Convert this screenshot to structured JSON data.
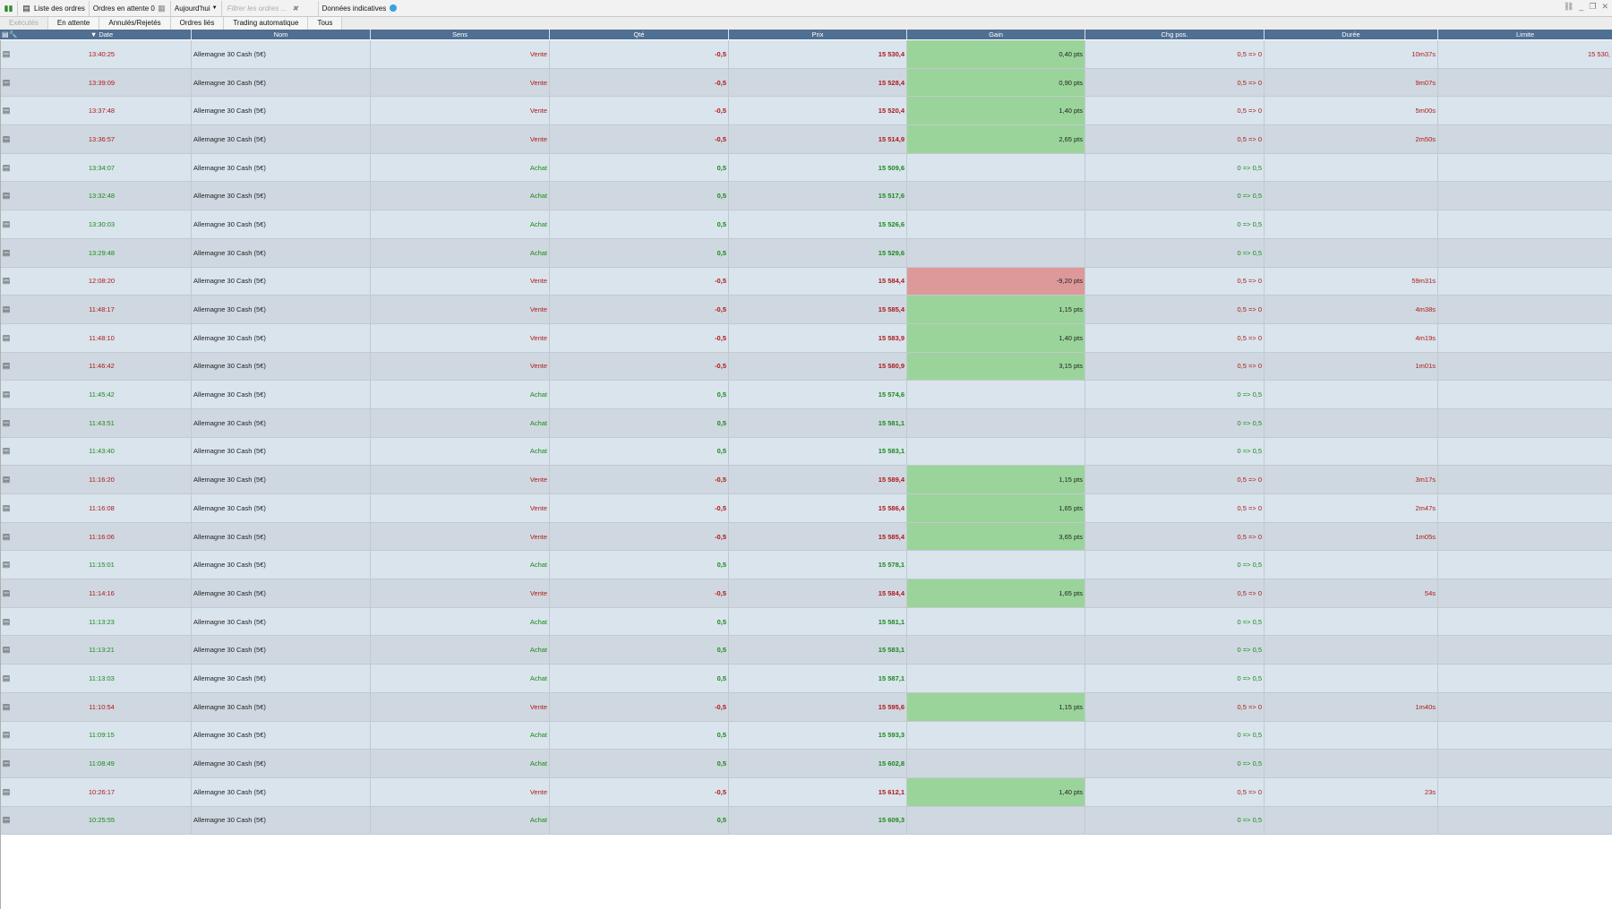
{
  "toolbar": {
    "orders_list": "Liste des ordres",
    "pending_orders": "Ordres en attente 0",
    "period": "Aujourd'hui",
    "filter_placeholder": "Filtrer les ordres ...",
    "indicative": "Données indicatives"
  },
  "tabs": [
    "Exécutés",
    "En attente",
    "Annulés/Rejetés",
    "Ordres liés",
    "Trading automatique",
    "Tous"
  ],
  "columns": {
    "date": "Date",
    "nom": "Nom",
    "sens": "Sens",
    "qte": "Qté",
    "prix": "Prix",
    "gain": "Gain",
    "chg": "Chg pos.",
    "duree": "Durée",
    "limite": "Limite"
  },
  "rows": [
    {
      "date": "13:40:25",
      "nom": "Allemagne 30 Cash (5€)",
      "sens": "Vente",
      "qte": "-0,5",
      "prix": "15 530,4",
      "gain": "0,40 pts",
      "chg": "0,5 => 0",
      "duree": "10m37s",
      "limite": "15 530,",
      "gain_state": "pos"
    },
    {
      "date": "13:39:09",
      "nom": "Allemagne 30 Cash (5€)",
      "sens": "Vente",
      "qte": "-0,5",
      "prix": "15 528,4",
      "gain": "0,90 pts",
      "chg": "0,5 => 0",
      "duree": "9m07s",
      "limite": "",
      "gain_state": "pos"
    },
    {
      "date": "13:37:48",
      "nom": "Allemagne 30 Cash (5€)",
      "sens": "Vente",
      "qte": "-0,5",
      "prix": "15 520,4",
      "gain": "1,40 pts",
      "chg": "0,5 => 0",
      "duree": "5m00s",
      "limite": "",
      "gain_state": "pos"
    },
    {
      "date": "13:36:57",
      "nom": "Allemagne 30 Cash (5€)",
      "sens": "Vente",
      "qte": "-0,5",
      "prix": "15 514,9",
      "gain": "2,65 pts",
      "chg": "0,5 => 0",
      "duree": "2m50s",
      "limite": "",
      "gain_state": "pos"
    },
    {
      "date": "13:34:07",
      "nom": "Allemagne 30 Cash (5€)",
      "sens": "Achat",
      "qte": "0,5",
      "prix": "15 509,6",
      "gain": "",
      "chg": "0 => 0,5",
      "duree": "",
      "limite": "",
      "gain_state": ""
    },
    {
      "date": "13:32:48",
      "nom": "Allemagne 30 Cash (5€)",
      "sens": "Achat",
      "qte": "0,5",
      "prix": "15 517,6",
      "gain": "",
      "chg": "0 => 0,5",
      "duree": "",
      "limite": "",
      "gain_state": ""
    },
    {
      "date": "13:30:03",
      "nom": "Allemagne 30 Cash (5€)",
      "sens": "Achat",
      "qte": "0,5",
      "prix": "15 526,6",
      "gain": "",
      "chg": "0 => 0,5",
      "duree": "",
      "limite": "",
      "gain_state": ""
    },
    {
      "date": "13:29:48",
      "nom": "Allemagne 30 Cash (5€)",
      "sens": "Achat",
      "qte": "0,5",
      "prix": "15 529,6",
      "gain": "",
      "chg": "0 => 0,5",
      "duree": "",
      "limite": "",
      "gain_state": ""
    },
    {
      "date": "12:08:20",
      "nom": "Allemagne 30 Cash (5€)",
      "sens": "Vente",
      "qte": "-0,5",
      "prix": "15 584,4",
      "gain": "-9,20 pts",
      "chg": "0,5 => 0",
      "duree": "59m31s",
      "limite": "",
      "gain_state": "neg"
    },
    {
      "date": "11:48:17",
      "nom": "Allemagne 30 Cash (5€)",
      "sens": "Vente",
      "qte": "-0,5",
      "prix": "15 585,4",
      "gain": "1,15 pts",
      "chg": "0,5 => 0",
      "duree": "4m38s",
      "limite": "",
      "gain_state": "pos"
    },
    {
      "date": "11:48:10",
      "nom": "Allemagne 30 Cash (5€)",
      "sens": "Vente",
      "qte": "-0,5",
      "prix": "15 583,9",
      "gain": "1,40 pts",
      "chg": "0,5 => 0",
      "duree": "4m19s",
      "limite": "",
      "gain_state": "pos"
    },
    {
      "date": "11:46:42",
      "nom": "Allemagne 30 Cash (5€)",
      "sens": "Vente",
      "qte": "-0,5",
      "prix": "15 580,9",
      "gain": "3,15 pts",
      "chg": "0,5 => 0",
      "duree": "1m01s",
      "limite": "",
      "gain_state": "pos"
    },
    {
      "date": "11:45:42",
      "nom": "Allemagne 30 Cash (5€)",
      "sens": "Achat",
      "qte": "0,5",
      "prix": "15 574,6",
      "gain": "",
      "chg": "0 => 0,5",
      "duree": "",
      "limite": "",
      "gain_state": ""
    },
    {
      "date": "11:43:51",
      "nom": "Allemagne 30 Cash (5€)",
      "sens": "Achat",
      "qte": "0,5",
      "prix": "15 581,1",
      "gain": "",
      "chg": "0 => 0,5",
      "duree": "",
      "limite": "",
      "gain_state": ""
    },
    {
      "date": "11:43:40",
      "nom": "Allemagne 30 Cash (5€)",
      "sens": "Achat",
      "qte": "0,5",
      "prix": "15 583,1",
      "gain": "",
      "chg": "0 => 0,5",
      "duree": "",
      "limite": "",
      "gain_state": ""
    },
    {
      "date": "11:16:20",
      "nom": "Allemagne 30 Cash (5€)",
      "sens": "Vente",
      "qte": "-0,5",
      "prix": "15 589,4",
      "gain": "1,15 pts",
      "chg": "0,5 => 0",
      "duree": "3m17s",
      "limite": "",
      "gain_state": "pos"
    },
    {
      "date": "11:16:08",
      "nom": "Allemagne 30 Cash (5€)",
      "sens": "Vente",
      "qte": "-0,5",
      "prix": "15 586,4",
      "gain": "1,65 pts",
      "chg": "0,5 => 0",
      "duree": "2m47s",
      "limite": "",
      "gain_state": "pos"
    },
    {
      "date": "11:16:06",
      "nom": "Allemagne 30 Cash (5€)",
      "sens": "Vente",
      "qte": "-0,5",
      "prix": "15 585,4",
      "gain": "3,65 pts",
      "chg": "0,5 => 0",
      "duree": "1m05s",
      "limite": "",
      "gain_state": "pos"
    },
    {
      "date": "11:15:01",
      "nom": "Allemagne 30 Cash (5€)",
      "sens": "Achat",
      "qte": "0,5",
      "prix": "15 578,1",
      "gain": "",
      "chg": "0 => 0,5",
      "duree": "",
      "limite": "",
      "gain_state": ""
    },
    {
      "date": "11:14:16",
      "nom": "Allemagne 30 Cash (5€)",
      "sens": "Vente",
      "qte": "-0,5",
      "prix": "15 584,4",
      "gain": "1,65 pts",
      "chg": "0,5 => 0",
      "duree": "54s",
      "limite": "",
      "gain_state": "pos"
    },
    {
      "date": "11:13:23",
      "nom": "Allemagne 30 Cash (5€)",
      "sens": "Achat",
      "qte": "0,5",
      "prix": "15 581,1",
      "gain": "",
      "chg": "0 => 0,5",
      "duree": "",
      "limite": "",
      "gain_state": ""
    },
    {
      "date": "11:13:21",
      "nom": "Allemagne 30 Cash (5€)",
      "sens": "Achat",
      "qte": "0,5",
      "prix": "15 583,1",
      "gain": "",
      "chg": "0 => 0,5",
      "duree": "",
      "limite": "",
      "gain_state": ""
    },
    {
      "date": "11:13:03",
      "nom": "Allemagne 30 Cash (5€)",
      "sens": "Achat",
      "qte": "0,5",
      "prix": "15 587,1",
      "gain": "",
      "chg": "0 => 0,5",
      "duree": "",
      "limite": "",
      "gain_state": ""
    },
    {
      "date": "11:10:54",
      "nom": "Allemagne 30 Cash (5€)",
      "sens": "Vente",
      "qte": "-0,5",
      "prix": "15 595,6",
      "gain": "1,15 pts",
      "chg": "0,5 => 0",
      "duree": "1m40s",
      "limite": "",
      "gain_state": "pos"
    },
    {
      "date": "11:09:15",
      "nom": "Allemagne 30 Cash (5€)",
      "sens": "Achat",
      "qte": "0,5",
      "prix": "15 593,3",
      "gain": "",
      "chg": "0 => 0,5",
      "duree": "",
      "limite": "",
      "gain_state": ""
    },
    {
      "date": "11:08:49",
      "nom": "Allemagne 30 Cash (5€)",
      "sens": "Achat",
      "qte": "0,5",
      "prix": "15 602,8",
      "gain": "",
      "chg": "0 => 0,5",
      "duree": "",
      "limite": "",
      "gain_state": ""
    },
    {
      "date": "10:26:17",
      "nom": "Allemagne 30 Cash (5€)",
      "sens": "Vente",
      "qte": "-0,5",
      "prix": "15 612,1",
      "gain": "1,40 pts",
      "chg": "0,5 => 0",
      "duree": "23s",
      "limite": "",
      "gain_state": "pos"
    },
    {
      "date": "10:25:55",
      "nom": "Allemagne 30 Cash (5€)",
      "sens": "Achat",
      "qte": "0,5",
      "prix": "15 609,3",
      "gain": "",
      "chg": "0 => 0,5",
      "duree": "",
      "limite": "",
      "gain_state": ""
    }
  ],
  "colors": {
    "header_bg": "#4f6f93",
    "sell": "#b01818",
    "buy": "#1a8a1a",
    "gain_positive": "#9ad49a",
    "gain_negative": "#dd9999",
    "row_light": "#d9e4ed",
    "row_dark": "#cfd8e0"
  }
}
